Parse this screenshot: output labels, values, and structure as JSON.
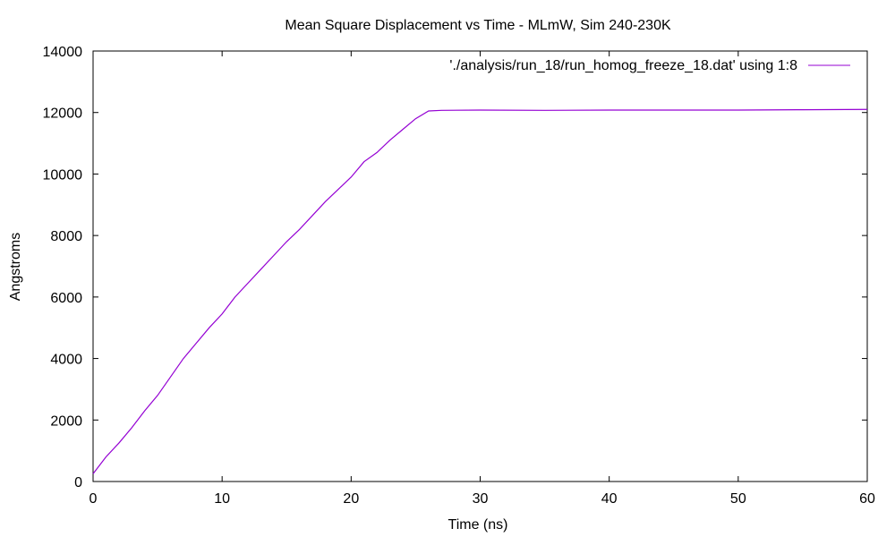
{
  "chart_data": {
    "type": "line",
    "title": "Mean Square Displacement vs Time - MLmW, Sim 240-230K",
    "xlabel": "Time (ns)",
    "ylabel": "Angstroms",
    "xlim": [
      0,
      60
    ],
    "ylim": [
      0,
      14000
    ],
    "xticks": [
      0,
      10,
      20,
      30,
      40,
      50,
      60
    ],
    "yticks": [
      0,
      2000,
      4000,
      6000,
      8000,
      10000,
      12000,
      14000
    ],
    "grid": false,
    "legend_position": "top-right",
    "series": [
      {
        "name": "'./analysis/run_18/run_homog_freeze_18.dat' using 1:8",
        "color": "#9400d3",
        "x": [
          0,
          1,
          2,
          3,
          4,
          5,
          6,
          7,
          8,
          9,
          10,
          11,
          12,
          13,
          14,
          15,
          16,
          17,
          18,
          19,
          20,
          21,
          22,
          23,
          24,
          25,
          26,
          27,
          30,
          35,
          40,
          45,
          50,
          55,
          60
        ],
        "y": [
          250,
          800,
          1250,
          1750,
          2300,
          2800,
          3400,
          4000,
          4500,
          5000,
          5450,
          6000,
          6450,
          6900,
          7350,
          7800,
          8200,
          8650,
          9100,
          9500,
          9900,
          10400,
          10700,
          11100,
          11450,
          11800,
          12050,
          12070,
          12080,
          12070,
          12080,
          12080,
          12080,
          12090,
          12100
        ]
      }
    ]
  }
}
